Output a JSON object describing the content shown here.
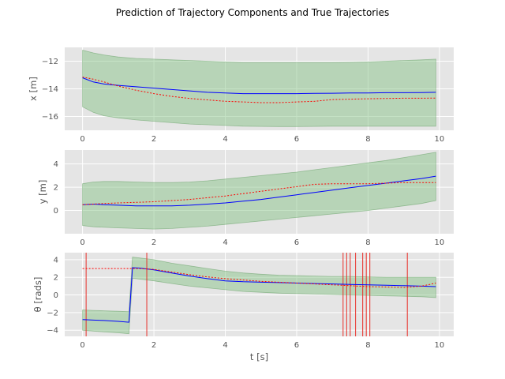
{
  "title": "Prediction of Trajectory Components and True Trajectories",
  "colors": {
    "axes_bg": "#e5e5e5",
    "grid": "#ffffff",
    "band_fill": "#7fbf7f",
    "true_line": "#0000ff",
    "pred_line": "#ff0000",
    "event_line": "#e8302a"
  },
  "chart_data": [
    {
      "type": "line",
      "ylabel_text": "x [m]",
      "xlim": [
        -0.5,
        10.4
      ],
      "ylim": [
        -17.0,
        -11.0
      ],
      "xticks": [
        0,
        2,
        4,
        6,
        8,
        10
      ],
      "yticks": [
        -12,
        -14,
        -16
      ],
      "grid": true,
      "x": [
        0,
        0.3,
        0.6,
        1,
        1.5,
        2,
        2.5,
        3,
        3.5,
        4,
        4.5,
        5,
        5.5,
        6,
        6.5,
        7,
        7.5,
        8,
        8.5,
        9,
        9.5,
        9.9
      ],
      "series": [
        {
          "role": "band_upper",
          "values": [
            -11.2,
            -11.4,
            -11.55,
            -11.7,
            -11.8,
            -11.85,
            -11.9,
            -11.95,
            -12.0,
            -12.05,
            -12.1,
            -12.1,
            -12.1,
            -12.1,
            -12.1,
            -12.1,
            -12.08,
            -12.05,
            -12.0,
            -11.95,
            -11.9,
            -11.85
          ]
        },
        {
          "role": "band_lower",
          "values": [
            -15.3,
            -15.7,
            -15.95,
            -16.1,
            -16.25,
            -16.35,
            -16.45,
            -16.55,
            -16.6,
            -16.65,
            -16.7,
            -16.72,
            -16.73,
            -16.73,
            -16.72,
            -16.7,
            -16.7,
            -16.7,
            -16.7,
            -16.7,
            -16.7,
            -16.7
          ]
        },
        {
          "role": "true",
          "values": [
            -13.2,
            -13.5,
            -13.65,
            -13.75,
            -13.85,
            -13.95,
            -14.05,
            -14.15,
            -14.25,
            -14.3,
            -14.35,
            -14.35,
            -14.35,
            -14.35,
            -14.33,
            -14.32,
            -14.3,
            -14.3,
            -14.28,
            -14.28,
            -14.27,
            -14.25
          ]
        },
        {
          "role": "pred",
          "values": [
            -13.15,
            -13.3,
            -13.5,
            -13.8,
            -14.1,
            -14.35,
            -14.55,
            -14.7,
            -14.8,
            -14.9,
            -14.95,
            -15.0,
            -15.0,
            -14.95,
            -14.9,
            -14.78,
            -14.75,
            -14.72,
            -14.7,
            -14.68,
            -14.68,
            -14.67
          ]
        }
      ],
      "events": []
    },
    {
      "type": "line",
      "ylabel_text": "y [m]",
      "xlim": [
        -0.5,
        10.4
      ],
      "ylim": [
        -2.0,
        5.2
      ],
      "xticks": [
        0,
        2,
        4,
        6,
        8,
        10
      ],
      "yticks": [
        4,
        2,
        0
      ],
      "grid": true,
      "x": [
        0,
        0.3,
        0.6,
        1,
        1.5,
        2,
        2.5,
        3,
        3.5,
        4,
        4.5,
        5,
        5.5,
        6,
        6.5,
        7,
        7.5,
        8,
        8.5,
        9,
        9.5,
        9.9
      ],
      "series": [
        {
          "role": "band_upper",
          "values": [
            2.3,
            2.45,
            2.5,
            2.5,
            2.45,
            2.4,
            2.4,
            2.45,
            2.55,
            2.7,
            2.85,
            3.0,
            3.15,
            3.3,
            3.5,
            3.7,
            3.9,
            4.1,
            4.3,
            4.55,
            4.8,
            5.0
          ]
        },
        {
          "role": "band_lower",
          "values": [
            -1.3,
            -1.4,
            -1.45,
            -1.5,
            -1.55,
            -1.6,
            -1.55,
            -1.45,
            -1.35,
            -1.2,
            -1.05,
            -0.9,
            -0.75,
            -0.6,
            -0.45,
            -0.3,
            -0.15,
            0.0,
            0.2,
            0.4,
            0.6,
            0.85
          ]
        },
        {
          "role": "true",
          "values": [
            0.5,
            0.55,
            0.5,
            0.45,
            0.4,
            0.4,
            0.4,
            0.45,
            0.55,
            0.65,
            0.8,
            0.95,
            1.15,
            1.35,
            1.55,
            1.75,
            1.95,
            2.15,
            2.35,
            2.55,
            2.75,
            2.95
          ]
        },
        {
          "role": "pred",
          "values": [
            0.5,
            0.55,
            0.6,
            0.65,
            0.7,
            0.75,
            0.85,
            0.95,
            1.1,
            1.25,
            1.45,
            1.65,
            1.85,
            2.05,
            2.25,
            2.3,
            2.3,
            2.3,
            2.35,
            2.4,
            2.4,
            2.4
          ]
        }
      ],
      "events": []
    },
    {
      "type": "line",
      "ylabel_text": "θ [rads]",
      "xlabel_text": "t [s]",
      "xlim": [
        -0.5,
        10.4
      ],
      "ylim": [
        -4.7,
        4.8
      ],
      "xticks": [
        0,
        2,
        4,
        6,
        8,
        10
      ],
      "yticks": [
        4,
        2,
        0,
        -2,
        -4
      ],
      "grid": true,
      "x": [
        0,
        0.3,
        0.6,
        1,
        1.3,
        1.4,
        1.6,
        2,
        2.5,
        3,
        3.5,
        4,
        4.5,
        5,
        5.5,
        6,
        6.5,
        7,
        7.5,
        8,
        8.5,
        9,
        9.5,
        9.9
      ],
      "series": [
        {
          "role": "band_upper",
          "values": [
            -1.7,
            -1.75,
            -1.8,
            -1.85,
            -1.9,
            4.3,
            4.2,
            4.0,
            3.6,
            3.3,
            3.0,
            2.7,
            2.5,
            2.35,
            2.25,
            2.2,
            2.15,
            2.1,
            2.1,
            2.05,
            2.0,
            2.0,
            2.0,
            2.0
          ]
        },
        {
          "role": "band_lower",
          "values": [
            -4.0,
            -4.1,
            -4.2,
            -4.3,
            -4.4,
            1.9,
            1.8,
            1.6,
            1.3,
            1.0,
            0.8,
            0.6,
            0.4,
            0.3,
            0.2,
            0.15,
            0.1,
            0.05,
            0.0,
            -0.05,
            -0.1,
            -0.15,
            -0.2,
            -0.3
          ]
        },
        {
          "role": "true",
          "values": [
            -2.8,
            -2.85,
            -2.9,
            -3.0,
            -3.1,
            3.1,
            3.05,
            2.85,
            2.5,
            2.15,
            1.85,
            1.6,
            1.5,
            1.45,
            1.4,
            1.35,
            1.3,
            1.25,
            1.2,
            1.15,
            1.1,
            1.05,
            1.0,
            0.95
          ]
        },
        {
          "role": "pred",
          "values": [
            3.0,
            3.0,
            3.0,
            3.0,
            3.0,
            3.0,
            3.0,
            2.9,
            2.6,
            2.3,
            2.05,
            1.85,
            1.7,
            1.55,
            1.45,
            1.35,
            1.25,
            1.15,
            1.05,
            0.95,
            0.9,
            0.85,
            1.0,
            1.35
          ]
        }
      ],
      "pred_start": 0,
      "events": [
        0.1,
        1.8,
        7.3,
        7.4,
        7.5,
        7.65,
        7.85,
        7.95,
        8.05,
        9.1
      ]
    }
  ]
}
